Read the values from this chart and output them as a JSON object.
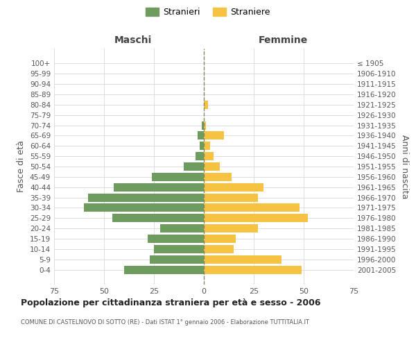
{
  "age_groups": [
    "100+",
    "95-99",
    "90-94",
    "85-89",
    "80-84",
    "75-79",
    "70-74",
    "65-69",
    "60-64",
    "55-59",
    "50-54",
    "45-49",
    "40-44",
    "35-39",
    "30-34",
    "25-29",
    "20-24",
    "15-19",
    "10-14",
    "5-9",
    "0-4"
  ],
  "birth_years": [
    "≤ 1905",
    "1906-1910",
    "1911-1915",
    "1916-1920",
    "1921-1925",
    "1926-1930",
    "1931-1935",
    "1936-1940",
    "1941-1945",
    "1946-1950",
    "1951-1955",
    "1956-1960",
    "1961-1965",
    "1966-1970",
    "1971-1975",
    "1976-1980",
    "1981-1985",
    "1986-1990",
    "1991-1995",
    "1996-2000",
    "2001-2005"
  ],
  "maschi": [
    0,
    0,
    0,
    0,
    0,
    0,
    1,
    3,
    2,
    4,
    10,
    26,
    45,
    58,
    60,
    46,
    22,
    28,
    25,
    27,
    40
  ],
  "femmine": [
    0,
    0,
    0,
    0,
    2,
    0,
    1,
    10,
    3,
    5,
    8,
    14,
    30,
    27,
    48,
    52,
    27,
    16,
    15,
    39,
    49
  ],
  "color_maschi": "#6e9b5e",
  "color_femmine": "#f5c242",
  "title": "Popolazione per cittadinanza straniera per età e sesso - 2006",
  "subtitle": "COMUNE DI CASTELNOVO DI SOTTO (RE) - Dati ISTAT 1° gennaio 2006 - Elaborazione TUTTITALIA.IT",
  "xlabel_left": "Maschi",
  "xlabel_right": "Femmine",
  "ylabel_left": "Fasce di età",
  "ylabel_right": "Anni di nascita",
  "legend_maschi": "Stranieri",
  "legend_femmine": "Straniere",
  "xlim": 75,
  "background_color": "#ffffff",
  "grid_color": "#dddddd"
}
